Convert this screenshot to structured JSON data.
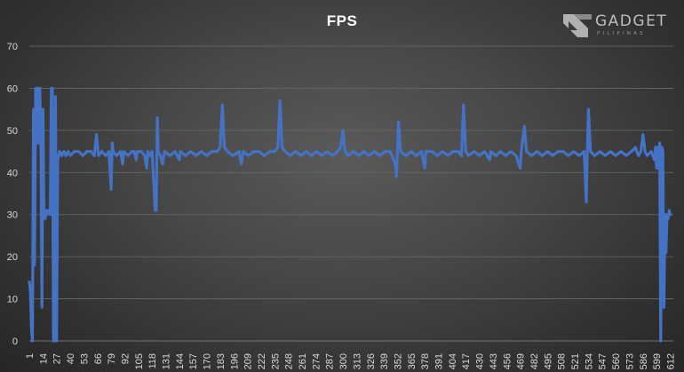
{
  "chart_data": {
    "type": "line",
    "title": "FPS",
    "xlabel": "",
    "ylabel": "",
    "ylim": [
      0,
      70
    ],
    "yticks": [
      0,
      10,
      20,
      30,
      40,
      50,
      60,
      70
    ],
    "xticks": [
      1,
      14,
      27,
      40,
      53,
      66,
      79,
      92,
      105,
      118,
      131,
      144,
      157,
      170,
      183,
      196,
      209,
      222,
      235,
      248,
      261,
      274,
      287,
      300,
      313,
      326,
      339,
      352,
      365,
      378,
      391,
      404,
      417,
      430,
      443,
      456,
      469,
      482,
      495,
      508,
      521,
      534,
      547,
      560,
      573,
      586,
      599,
      612
    ],
    "grid": "horizontal",
    "legend": "none",
    "series_color": "#4472c4",
    "series": [
      {
        "points": [
          [
            1,
            14
          ],
          [
            2,
            12
          ],
          [
            3,
            3
          ],
          [
            4,
            0
          ],
          [
            5,
            55
          ],
          [
            6,
            18
          ],
          [
            7,
            60
          ],
          [
            8,
            47
          ],
          [
            9,
            60
          ],
          [
            10,
            47
          ],
          [
            11,
            60
          ],
          [
            12,
            50
          ],
          [
            13,
            8
          ],
          [
            14,
            55
          ],
          [
            15,
            30
          ],
          [
            16,
            29
          ],
          [
            17,
            31
          ],
          [
            18,
            30
          ],
          [
            19,
            31
          ],
          [
            20,
            31
          ],
          [
            21,
            30
          ],
          [
            22,
            60
          ],
          [
            23,
            60
          ],
          [
            24,
            0
          ],
          [
            25,
            0
          ],
          [
            26,
            58
          ],
          [
            27,
            0
          ],
          [
            28,
            43
          ],
          [
            29,
            44
          ],
          [
            30,
            45
          ],
          [
            32,
            44
          ],
          [
            34,
            45
          ],
          [
            36,
            44
          ],
          [
            38,
            45
          ],
          [
            40,
            44
          ],
          [
            44,
            45
          ],
          [
            48,
            45
          ],
          [
            52,
            44
          ],
          [
            56,
            45
          ],
          [
            60,
            45
          ],
          [
            63,
            44
          ],
          [
            65,
            49
          ],
          [
            67,
            44
          ],
          [
            70,
            45
          ],
          [
            74,
            44
          ],
          [
            77,
            45
          ],
          [
            79,
            36
          ],
          [
            80,
            47
          ],
          [
            81,
            45
          ],
          [
            84,
            44
          ],
          [
            88,
            45
          ],
          [
            90,
            42
          ],
          [
            91,
            45
          ],
          [
            95,
            44
          ],
          [
            99,
            45
          ],
          [
            101,
            45
          ],
          [
            103,
            43
          ],
          [
            104,
            45
          ],
          [
            108,
            45
          ],
          [
            111,
            44
          ],
          [
            113,
            41
          ],
          [
            114,
            45
          ],
          [
            116,
            44
          ],
          [
            118,
            45
          ],
          [
            121,
            31
          ],
          [
            122,
            31
          ],
          [
            123,
            53
          ],
          [
            124,
            45
          ],
          [
            126,
            44
          ],
          [
            128,
            42
          ],
          [
            130,
            45
          ],
          [
            135,
            44
          ],
          [
            140,
            45
          ],
          [
            144,
            43
          ],
          [
            145,
            45
          ],
          [
            150,
            44
          ],
          [
            155,
            45
          ],
          [
            160,
            44
          ],
          [
            165,
            45
          ],
          [
            170,
            44
          ],
          [
            175,
            45
          ],
          [
            180,
            45
          ],
          [
            183,
            46
          ],
          [
            185,
            56
          ],
          [
            187,
            46
          ],
          [
            190,
            45
          ],
          [
            195,
            44
          ],
          [
            201,
            45
          ],
          [
            203,
            42
          ],
          [
            205,
            45
          ],
          [
            210,
            44
          ],
          [
            215,
            45
          ],
          [
            220,
            45
          ],
          [
            225,
            44
          ],
          [
            230,
            45
          ],
          [
            235,
            45
          ],
          [
            238,
            46
          ],
          [
            240,
            57
          ],
          [
            242,
            46
          ],
          [
            245,
            45
          ],
          [
            250,
            44
          ],
          [
            255,
            45
          ],
          [
            260,
            44
          ],
          [
            265,
            45
          ],
          [
            270,
            44
          ],
          [
            275,
            45
          ],
          [
            280,
            44
          ],
          [
            285,
            45
          ],
          [
            290,
            44
          ],
          [
            295,
            45
          ],
          [
            298,
            46
          ],
          [
            300,
            50
          ],
          [
            302,
            45
          ],
          [
            305,
            44
          ],
          [
            310,
            45
          ],
          [
            315,
            44
          ],
          [
            320,
            45
          ],
          [
            325,
            44
          ],
          [
            330,
            45
          ],
          [
            335,
            44
          ],
          [
            340,
            45
          ],
          [
            345,
            45
          ],
          [
            350,
            42
          ],
          [
            351,
            39
          ],
          [
            353,
            52
          ],
          [
            355,
            45
          ],
          [
            360,
            44
          ],
          [
            365,
            45
          ],
          [
            370,
            44
          ],
          [
            375,
            45
          ],
          [
            378,
            41
          ],
          [
            379,
            45
          ],
          [
            385,
            45
          ],
          [
            390,
            44
          ],
          [
            395,
            45
          ],
          [
            400,
            44
          ],
          [
            405,
            45
          ],
          [
            410,
            45
          ],
          [
            413,
            44
          ],
          [
            415,
            56
          ],
          [
            417,
            45
          ],
          [
            420,
            44
          ],
          [
            425,
            45
          ],
          [
            430,
            44
          ],
          [
            435,
            45
          ],
          [
            440,
            43
          ],
          [
            441,
            45
          ],
          [
            446,
            44
          ],
          [
            450,
            45
          ],
          [
            455,
            44
          ],
          [
            460,
            45
          ],
          [
            465,
            44
          ],
          [
            469,
            41
          ],
          [
            470,
            45
          ],
          [
            473,
            51
          ],
          [
            475,
            45
          ],
          [
            480,
            44
          ],
          [
            485,
            45
          ],
          [
            490,
            44
          ],
          [
            495,
            45
          ],
          [
            500,
            44
          ],
          [
            505,
            45
          ],
          [
            510,
            45
          ],
          [
            515,
            44
          ],
          [
            520,
            45
          ],
          [
            525,
            44
          ],
          [
            530,
            45
          ],
          [
            532,
            33
          ],
          [
            533,
            45
          ],
          [
            534,
            55
          ],
          [
            536,
            45
          ],
          [
            540,
            44
          ],
          [
            545,
            45
          ],
          [
            550,
            44
          ],
          [
            555,
            45
          ],
          [
            560,
            44
          ],
          [
            565,
            45
          ],
          [
            570,
            44
          ],
          [
            575,
            45
          ],
          [
            579,
            46
          ],
          [
            580,
            45
          ],
          [
            582,
            44
          ],
          [
            584,
            45
          ],
          [
            586,
            49
          ],
          [
            588,
            45
          ],
          [
            590,
            44
          ],
          [
            594,
            45
          ],
          [
            597,
            43
          ],
          [
            598,
            46
          ],
          [
            599,
            41
          ],
          [
            600,
            46
          ],
          [
            601,
            41
          ],
          [
            602,
            47
          ],
          [
            603,
            0
          ],
          [
            604,
            46
          ],
          [
            605,
            45
          ],
          [
            606,
            8
          ],
          [
            607,
            30
          ],
          [
            608,
            21
          ],
          [
            609,
            30
          ],
          [
            610,
            29
          ],
          [
            611,
            31
          ],
          [
            612,
            30
          ]
        ]
      }
    ]
  },
  "watermark": {
    "name": "GADGET",
    "sub": "PILIPINAS"
  }
}
